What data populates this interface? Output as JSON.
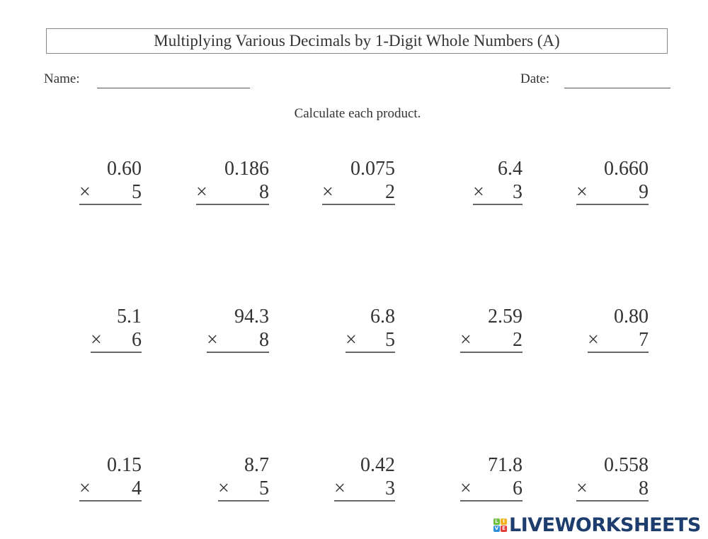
{
  "title": "Multiplying Various Decimals by 1-Digit Whole Numbers (A)",
  "name_label": "Name:",
  "date_label": "Date:",
  "instructions": "Calculate each product.",
  "operator": "×",
  "problems": [
    {
      "top": "0.60",
      "mult": "5"
    },
    {
      "top": "0.186",
      "mult": "8"
    },
    {
      "top": "0.075",
      "mult": "2"
    },
    {
      "top": "6.4",
      "mult": "3"
    },
    {
      "top": "0.660",
      "mult": "9"
    },
    {
      "top": "5.1",
      "mult": "6"
    },
    {
      "top": "94.3",
      "mult": "8"
    },
    {
      "top": "6.8",
      "mult": "5"
    },
    {
      "top": "2.59",
      "mult": "2"
    },
    {
      "top": "0.80",
      "mult": "7"
    },
    {
      "top": "0.15",
      "mult": "4"
    },
    {
      "top": "8.7",
      "mult": "5"
    },
    {
      "top": "0.42",
      "mult": "3"
    },
    {
      "top": "71.8",
      "mult": "6"
    },
    {
      "top": "0.558",
      "mult": "8"
    }
  ],
  "logo": {
    "text": "LIVEWORKSHEETS",
    "tiles": [
      "L",
      "I",
      "V",
      "E"
    ],
    "tile_colors": [
      "#6cbf3f",
      "#f5b324",
      "#2f8fd8",
      "#e53935"
    ],
    "text_color": "#1d3d6e"
  }
}
